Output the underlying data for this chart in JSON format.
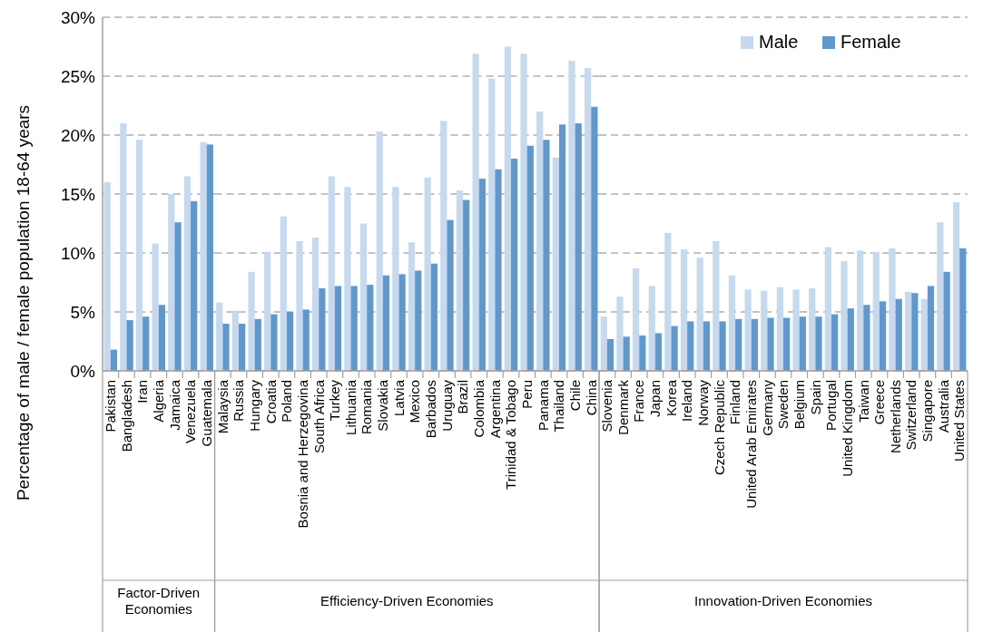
{
  "chart_data": [
    {
      "type": "bar",
      "xlabel": "Factor-Driven Economies",
      "ylabel": "Percentage of male / female population 18-64 years",
      "categories": [
        "Pakistan",
        "Bangladesh",
        "Iran",
        "Algeria",
        "Jamaica",
        "Venezuela",
        "Guatemala"
      ],
      "series": [
        {
          "color": "#c6d9ee",
          "values": [
            16.0,
            21.0,
            19.6,
            10.8,
            15.0,
            16.5,
            19.4
          ]
        },
        {
          "color": "#6198cc",
          "values": [
            1.8,
            4.3,
            4.6,
            5.6,
            12.6,
            14.4,
            19.2
          ]
        }
      ],
      "ylim": [
        0,
        30
      ],
      "yticks": [
        {
          "value": 0,
          "label": "0%"
        },
        {
          "value": 5,
          "label": "5%"
        },
        {
          "value": 10,
          "label": "10%"
        },
        {
          "value": 15,
          "label": "15%"
        },
        {
          "value": 20,
          "label": "20%"
        },
        {
          "value": 25,
          "label": "25%"
        },
        {
          "value": 30,
          "label": "30%"
        }
      ],
      "grid": "y"
    },
    {
      "type": "bar",
      "xlabel": "Efficiency-Driven Economies",
      "categories": [
        "Malaysia",
        "Russia",
        "Hungary",
        "Croatia",
        "Poland",
        "Bosnia and Herzegovina",
        "South Africa",
        "Turkey",
        "Lithuania",
        "Romania",
        "Slovakia",
        "Latvia",
        "Mexico",
        "Barbados",
        "Uruguay",
        "Brazil",
        "Colombia",
        "Argentina",
        "Trinidad & Tobago",
        "Peru",
        "Panama",
        "Thailand",
        "Chile",
        "China"
      ],
      "series": [
        {
          "color": "#c6d9ee",
          "values": [
            5.8,
            5.1,
            8.4,
            10.1,
            13.1,
            11.0,
            11.3,
            16.5,
            15.6,
            12.5,
            20.3,
            15.6,
            10.9,
            16.4,
            21.2,
            15.3,
            26.9,
            24.8,
            27.5,
            26.9,
            22.0,
            18.1,
            26.3,
            25.7
          ]
        },
        {
          "color": "#6198cc",
          "values": [
            4.0,
            4.0,
            4.4,
            4.8,
            5.0,
            5.2,
            7.0,
            7.2,
            7.2,
            7.3,
            8.1,
            8.2,
            8.5,
            9.1,
            12.8,
            14.5,
            16.3,
            17.1,
            18.0,
            19.1,
            19.6,
            20.9,
            21.0,
            22.4
          ]
        }
      ],
      "ylim": [
        0,
        30
      ],
      "yticks": [
        {
          "value": 0,
          "label": null
        },
        {
          "value": 5,
          "label": null
        },
        {
          "value": 10,
          "label": null
        },
        {
          "value": 15,
          "label": null
        },
        {
          "value": 20,
          "label": null
        },
        {
          "value": 25,
          "label": null
        },
        {
          "value": 30,
          "label": null
        }
      ],
      "grid": "y",
      "tick_labels": "x"
    },
    {
      "type": "bar",
      "xlabel": "Innovation-Driven Economies",
      "categories": [
        "Slovenia",
        "Denmark",
        "France",
        "Japan",
        "Korea",
        "Ireland",
        "Norway",
        "Czech Republic",
        "Finland",
        "United Arab Emirates",
        "Germany",
        "Sweden",
        "Belgium",
        "Spain",
        "Portugal",
        "United Kingdom",
        "Taiwan",
        "Greece",
        "Netherlands",
        "Switzerland",
        "Singapore",
        "Australia",
        "United States"
      ],
      "series": [
        {
          "name": "Male",
          "color": "#c6d9ee",
          "values": [
            4.6,
            6.3,
            8.7,
            7.2,
            11.7,
            10.3,
            9.6,
            11.0,
            8.1,
            6.9,
            6.8,
            7.1,
            6.9,
            7.0,
            10.5,
            9.3,
            10.2,
            10.1,
            10.4,
            6.7,
            6.1,
            12.6,
            14.3
          ]
        },
        {
          "name": "Female",
          "color": "#6198cc",
          "values": [
            2.7,
            2.9,
            3.0,
            3.2,
            3.8,
            4.2,
            4.2,
            4.2,
            4.4,
            4.4,
            4.5,
            4.5,
            4.6,
            4.6,
            4.8,
            5.3,
            5.6,
            5.9,
            6.1,
            6.6,
            7.2,
            8.4,
            10.4
          ]
        }
      ],
      "ylim": [
        0,
        30
      ],
      "yticks": [
        {
          "value": 0,
          "label": null
        },
        {
          "value": 5,
          "label": null
        },
        {
          "value": 10,
          "label": null
        },
        {
          "value": 15,
          "label": null
        },
        {
          "value": 20,
          "label": null
        },
        {
          "value": 25,
          "label": null
        },
        {
          "value": 30,
          "label": null
        }
      ],
      "grid": "y",
      "tick_labels": "x",
      "legend": "top right"
    }
  ]
}
